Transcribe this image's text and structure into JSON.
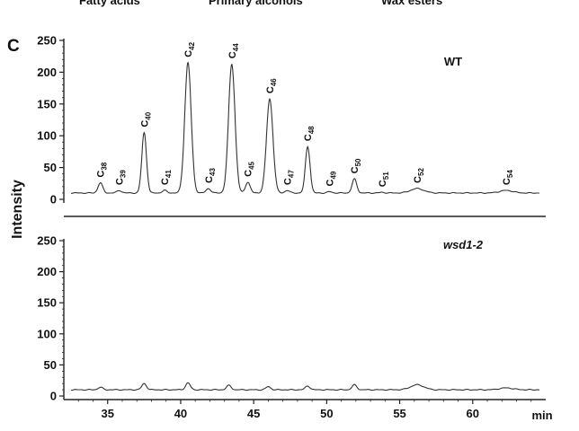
{
  "header_labels": [
    "Fatty acids",
    "Primary alcohols",
    "Wax esters"
  ],
  "panel_letter": "C",
  "ylabel": "Intensity",
  "xlabel": "min",
  "chart_data": [
    {
      "type": "line",
      "title": "WT",
      "ylim": [
        0,
        250
      ],
      "xlim": [
        32,
        65
      ],
      "yticks": [
        0,
        50,
        100,
        150,
        200,
        250
      ],
      "xticks": [
        35,
        40,
        45,
        50,
        55,
        60
      ],
      "baseline": 10,
      "peaks": [
        {
          "label": "C",
          "sub": "38",
          "x": 34.5,
          "y": 26
        },
        {
          "label": "C",
          "sub": "39",
          "x": 35.8,
          "y": 14
        },
        {
          "label": "C",
          "sub": "40",
          "x": 37.5,
          "y": 105
        },
        {
          "label": "C",
          "sub": "41",
          "x": 38.9,
          "y": 14
        },
        {
          "label": "C",
          "sub": "42",
          "x": 40.5,
          "y": 215
        },
        {
          "label": "C",
          "sub": "43",
          "x": 41.9,
          "y": 17
        },
        {
          "label": "C",
          "sub": "44",
          "x": 43.5,
          "y": 213
        },
        {
          "label": "C",
          "sub": "45",
          "x": 44.6,
          "y": 27
        },
        {
          "label": "C",
          "sub": "46",
          "x": 46.1,
          "y": 158
        },
        {
          "label": "C",
          "sub": "47",
          "x": 47.3,
          "y": 14
        },
        {
          "label": "C",
          "sub": "48",
          "x": 48.7,
          "y": 83
        },
        {
          "label": "C",
          "sub": "49",
          "x": 50.2,
          "y": 12
        },
        {
          "label": "C",
          "sub": "50",
          "x": 51.9,
          "y": 32
        },
        {
          "label": "C",
          "sub": "51",
          "x": 53.8,
          "y": 11
        },
        {
          "label": "C",
          "sub": "52",
          "x": 56.2,
          "y": 17
        },
        {
          "label": "C",
          "sub": "54",
          "x": 62.3,
          "y": 14
        }
      ]
    },
    {
      "type": "line",
      "title": "wsd1-2",
      "ylim": [
        0,
        250
      ],
      "xlim": [
        32,
        65
      ],
      "yticks": [
        0,
        50,
        100,
        150,
        200,
        250
      ],
      "xticks": [
        35,
        40,
        45,
        50,
        55,
        60
      ],
      "baseline": 10,
      "peaks": [
        {
          "x": 34.5,
          "y": 14
        },
        {
          "x": 37.5,
          "y": 20
        },
        {
          "x": 40.5,
          "y": 21
        },
        {
          "x": 43.3,
          "y": 17
        },
        {
          "x": 46.0,
          "y": 15
        },
        {
          "x": 48.7,
          "y": 16
        },
        {
          "x": 51.9,
          "y": 18
        },
        {
          "x": 56.2,
          "y": 18
        },
        {
          "x": 62.3,
          "y": 13
        }
      ]
    }
  ]
}
